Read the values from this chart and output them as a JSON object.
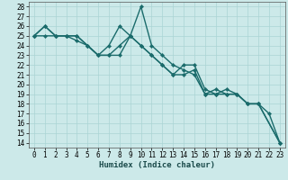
{
  "title": "",
  "xlabel": "Humidex (Indice chaleur)",
  "xlim": [
    -0.5,
    23.5
  ],
  "ylim": [
    13.5,
    28.5
  ],
  "xticks": [
    0,
    1,
    2,
    3,
    4,
    5,
    6,
    7,
    8,
    9,
    10,
    11,
    12,
    13,
    14,
    15,
    16,
    17,
    18,
    19,
    20,
    21,
    22,
    23
  ],
  "yticks": [
    14,
    15,
    16,
    17,
    18,
    19,
    20,
    21,
    22,
    23,
    24,
    25,
    26,
    27,
    28
  ],
  "bg_color": "#cce9e9",
  "grid_color": "#aad4d4",
  "line_color": "#1a6b6b",
  "series": [
    [
      25,
      26,
      25,
      25,
      25,
      24,
      23,
      24,
      26,
      25,
      28,
      24,
      23,
      22,
      21.5,
      21,
      19,
      19,
      19.5,
      19,
      18,
      18,
      17,
      14
    ],
    [
      25,
      26,
      25,
      25,
      25,
      24,
      23,
      23,
      23,
      25,
      24,
      23,
      22,
      21,
      21,
      21.5,
      19,
      19.5,
      19,
      19,
      18,
      18,
      null,
      14
    ],
    [
      25,
      25,
      25,
      25,
      24.5,
      24,
      23,
      23,
      24,
      25,
      24,
      23,
      22,
      21,
      22,
      22,
      19.5,
      19,
      19,
      19,
      18,
      18,
      null,
      14
    ]
  ],
  "marker": "D",
  "markersize": 2.2,
  "linewidth": 1.0,
  "tick_fontsize": 5.5,
  "xlabel_fontsize": 6.5
}
